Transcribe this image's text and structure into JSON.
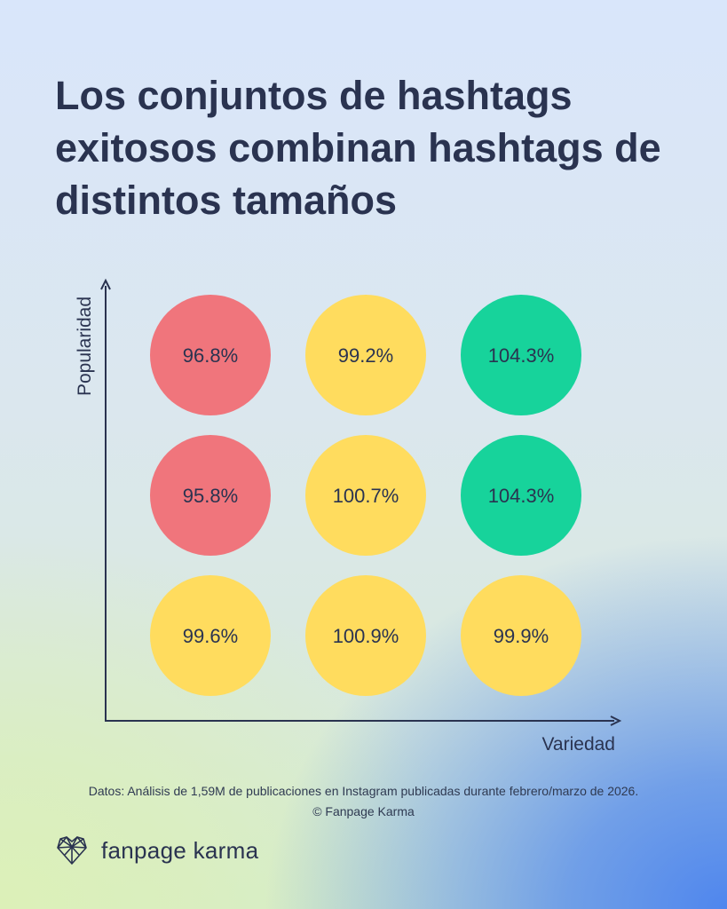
{
  "title": "Los conjuntos de hashtags exitosos combinan hashtags de distintos tamaños",
  "chart_data": {
    "type": "bubble-grid",
    "xlabel": "Variedad",
    "ylabel": "Popularidad",
    "rows": [
      {
        "cells": [
          {
            "label": "96.8%",
            "value": 96.8,
            "color": "#f0757c"
          },
          {
            "label": "99.2%",
            "value": 99.2,
            "color": "#ffdc5e"
          },
          {
            "label": "104.3%",
            "value": 104.3,
            "color": "#17d39b"
          }
        ]
      },
      {
        "cells": [
          {
            "label": "95.8%",
            "value": 95.8,
            "color": "#f0757c"
          },
          {
            "label": "100.7%",
            "value": 100.7,
            "color": "#ffdc5e"
          },
          {
            "label": "104.3%",
            "value": 104.3,
            "color": "#17d39b"
          }
        ]
      },
      {
        "cells": [
          {
            "label": "99.6%",
            "value": 99.6,
            "color": "#ffdc5e"
          },
          {
            "label": "100.9%",
            "value": 100.9,
            "color": "#ffdc5e"
          },
          {
            "label": "99.9%",
            "value": 99.9,
            "color": "#ffdc5e"
          }
        ]
      }
    ]
  },
  "footer": {
    "source_line1": "Datos: Análisis de 1,59M de publicaciones en Instagram publicadas durante febrero/marzo de 2026.",
    "source_line2": "© Fanpage Karma"
  },
  "brand": {
    "name": "fanpage karma",
    "icon": "heart-network-icon"
  }
}
